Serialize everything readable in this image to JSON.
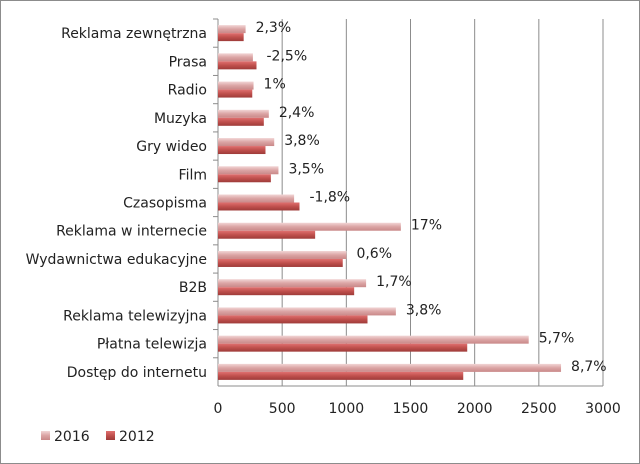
{
  "chart_data": {
    "type": "bar",
    "orientation": "horizontal",
    "categories": [
      "Reklama zewnętrzna",
      "Prasa",
      "Radio",
      "Muzyka",
      "Gry wideo",
      "Film",
      "Czasopisma",
      "Reklama w internecie",
      "Wydawnictwa edukacyjne",
      "B2B",
      "Reklama telewizyjna",
      "Płatna telewizja",
      "Dostęp do internetu"
    ],
    "series": [
      {
        "name": "2016",
        "color": "#dba4a4",
        "values": [
          215,
          272,
          277,
          396,
          438,
          471,
          593,
          1425,
          1001,
          1154,
          1386,
          2421,
          2673
        ]
      },
      {
        "name": "2012",
        "color": "#c0504d",
        "values": [
          200,
          300,
          267,
          357,
          370,
          412,
          635,
          757,
          972,
          1061,
          1165,
          1942,
          1911
        ]
      }
    ],
    "data_labels": [
      "2,3%",
      "-2,5%",
      "1%",
      "2,4%",
      "3,8%",
      "3,5%",
      "-1,8%",
      "17%",
      "0,6%",
      "1,7%",
      "3,8%",
      "5,7%",
      "8,7%"
    ],
    "xlim": [
      0,
      3000
    ],
    "xticks": [
      0,
      500,
      1000,
      1500,
      2000,
      2500,
      3000
    ],
    "grid": "vertical",
    "legend": "bottom-left"
  }
}
